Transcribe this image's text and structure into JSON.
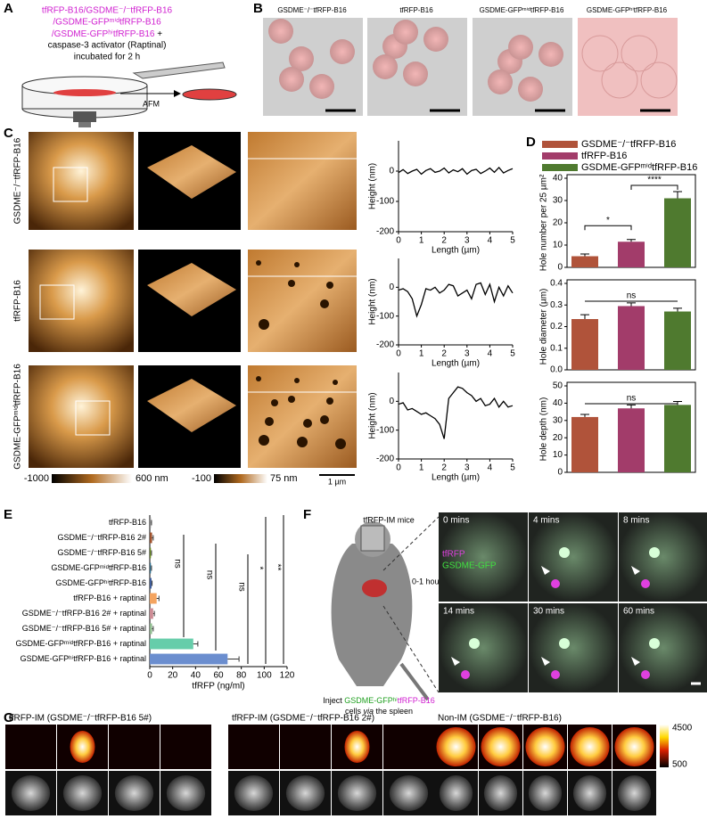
{
  "panel_labels": [
    "A",
    "B",
    "C",
    "D",
    "E",
    "F",
    "G"
  ],
  "panel_a": {
    "lines": [
      "tfRFP-B16/GSDME⁻/⁻tfRFP-B16",
      "/GSDME-GFPᵐⁱᵈtfRFP-B16",
      "/GSDME-GFPʰⁱtfRFP-B16"
    ],
    "plus": " +",
    "black_lines": [
      "caspase-3 activator (Raptinal)",
      "incubated for 2 h"
    ],
    "afm": "AFM"
  },
  "panel_b": {
    "titles": [
      "GSDME⁻/⁻tfRFP-B16",
      "tfRFP-B16",
      "GSDME-GFPᵐⁱᵈtfRFP-B16",
      "GSDME-GFPʰⁱtfRFP-B16"
    ]
  },
  "panel_c": {
    "row_labels": [
      "GSDME⁻/⁻tfRFP-B16",
      "tfRFP-B16",
      "GSDME-GFPᵐⁱᵈtfRFP-B16"
    ],
    "scale_1": [
      "-1000",
      "600 nm"
    ],
    "scale_2": [
      "-100",
      "75 nm"
    ],
    "scale_bar": "1 µm"
  },
  "panel_d": {
    "legend": [
      {
        "name": "GSDME⁻/⁻tfRFP-B16",
        "color": "#b0533a"
      },
      {
        "name": "tfRFP-B16",
        "color": "#a23c6a"
      },
      {
        "name": "GSDME-GFPᵐⁱᵈtfRFP-B16",
        "color": "#4f7a2f"
      }
    ]
  },
  "chart_data": [
    {
      "type": "line",
      "ylabel": "Height (nm)",
      "xlabel": "Length (µm)",
      "x": [
        0,
        0.2,
        0.4,
        0.6,
        0.8,
        1,
        1.2,
        1.4,
        1.6,
        1.8,
        2,
        2.2,
        2.4,
        2.6,
        2.8,
        3,
        3.2,
        3.4,
        3.6,
        3.8,
        4,
        4.2,
        4.4,
        4.6,
        4.8,
        5
      ],
      "series": [
        {
          "color": "#000000",
          "values": [
            -5,
            5,
            -8,
            0,
            6,
            -10,
            2,
            8,
            -4,
            0,
            10,
            -6,
            4,
            -2,
            8,
            -10,
            2,
            6,
            -8,
            0,
            10,
            -4,
            12,
            -6,
            2,
            8
          ]
        }
      ],
      "xlim": [
        0,
        5
      ],
      "ylim": [
        -200,
        100
      ],
      "xticks": [
        0,
        1,
        2,
        3,
        4,
        5
      ],
      "yticks": [
        -200,
        -100,
        0
      ]
    },
    {
      "type": "line",
      "ylabel": "Height (nm)",
      "xlabel": "Length (µm)",
      "x": [
        0,
        0.2,
        0.4,
        0.6,
        0.8,
        1,
        1.2,
        1.4,
        1.6,
        1.8,
        2,
        2.2,
        2.4,
        2.6,
        2.8,
        3,
        3.2,
        3.4,
        3.6,
        3.8,
        4,
        4.2,
        4.4,
        4.6,
        4.8,
        5
      ],
      "series": [
        {
          "color": "#000000",
          "values": [
            -10,
            -5,
            -15,
            -40,
            -100,
            -60,
            -5,
            -10,
            0,
            -20,
            -10,
            10,
            5,
            -30,
            -20,
            -10,
            -40,
            10,
            15,
            -25,
            10,
            -50,
            0,
            -30,
            5,
            -20
          ]
        }
      ],
      "xlim": [
        0,
        5
      ],
      "ylim": [
        -200,
        100
      ],
      "xticks": [
        0,
        1,
        2,
        3,
        4,
        5
      ],
      "yticks": [
        -200,
        -100,
        0
      ]
    },
    {
      "type": "line",
      "ylabel": "Height (nm)",
      "xlabel": "Length (µm)",
      "x": [
        0,
        0.2,
        0.4,
        0.6,
        0.8,
        1,
        1.2,
        1.4,
        1.6,
        1.8,
        2,
        2.2,
        2.4,
        2.6,
        2.8,
        3,
        3.2,
        3.4,
        3.6,
        3.8,
        4,
        4.2,
        4.4,
        4.6,
        4.8,
        5
      ],
      "series": [
        {
          "color": "#000000",
          "values": [
            -10,
            -5,
            -30,
            -25,
            -35,
            -45,
            -40,
            -50,
            -60,
            -80,
            -130,
            10,
            30,
            50,
            45,
            30,
            20,
            0,
            10,
            -15,
            -10,
            10,
            -20,
            0,
            -20,
            -15
          ]
        }
      ],
      "xlim": [
        0,
        5
      ],
      "ylim": [
        -200,
        100
      ],
      "xticks": [
        0,
        1,
        2,
        3,
        4,
        5
      ],
      "yticks": [
        -200,
        -100,
        0
      ]
    },
    {
      "type": "bar",
      "ylabel": "Hole number per 25 µm²",
      "values": [
        5,
        11.5,
        31
      ],
      "errors": [
        1,
        1,
        3
      ],
      "colors": [
        "#b0533a",
        "#a23c6a",
        "#4f7a2f"
      ],
      "ylim": [
        0,
        40
      ],
      "yticks": [
        0,
        10,
        20,
        30,
        40
      ],
      "significance": [
        "*",
        "****"
      ]
    },
    {
      "type": "bar",
      "ylabel": "Hole diameter (µm)",
      "values": [
        0.235,
        0.295,
        0.27
      ],
      "errors": [
        0.02,
        0.015,
        0.015
      ],
      "colors": [
        "#b0533a",
        "#a23c6a",
        "#4f7a2f"
      ],
      "ylim": [
        0,
        0.4
      ],
      "yticks": [
        {
          "value": 0,
          "label": "0.0"
        },
        0.1,
        0.2,
        0.3,
        0.4
      ],
      "significance": [
        "ns"
      ]
    },
    {
      "type": "bar",
      "ylabel": "Hole depth (nm)",
      "values": [
        32,
        37,
        39
      ],
      "errors": [
        1.5,
        2,
        2
      ],
      "colors": [
        "#b0533a",
        "#a23c6a",
        "#4f7a2f"
      ],
      "ylim": [
        0,
        50
      ],
      "yticks": [
        0,
        10,
        20,
        30,
        40,
        50
      ],
      "significance": [
        "ns"
      ]
    },
    {
      "type": "hbar",
      "xlabel": "tfRFP (ng/ml)",
      "categories": [
        "tfRFP-B16",
        "GSDME⁻/⁻tfRFP-B16 2#",
        "GSDME⁻/⁻tfRFP-B16 5#",
        "GSDME-GFPᵐⁱᵈtfRFP-B16",
        "GSDME-GFPʰⁱtfRFP-B16",
        "tfRFP-B16 + raptinal",
        "GSDME⁻/⁻tfRFP-B16 2# + raptinal",
        "GSDME⁻/⁻tfRFP-B16 5# + raptinal",
        "GSDME-GFPᵐⁱᵈtfRFP-B16 + raptinal",
        "GSDME-GFPʰⁱtfRFP-B16 + raptinal"
      ],
      "values": [
        1,
        2,
        1,
        1,
        1.5,
        6,
        3,
        2,
        38,
        68
      ],
      "errors": [
        0.5,
        1,
        0.5,
        0.5,
        0.5,
        2,
        1,
        1,
        4,
        10
      ],
      "colors": [
        "#8c8c8c",
        "#a0522d",
        "#6b8e23",
        "#2f6f8f",
        "#3b5a9a",
        "#f4a460",
        "#cd8c95",
        "#8fbc8f",
        "#66cdaa",
        "#6b8ecf"
      ],
      "xlim": [
        0,
        120
      ],
      "xticks": [
        0,
        20,
        40,
        60,
        80,
        100,
        120
      ],
      "significance": [
        "ns",
        "ns",
        "ns",
        "*",
        "**"
      ]
    }
  ],
  "panel_f": {
    "mice": "tfRFP-IM mice",
    "time": "0-1 hour",
    "inject": [
      "Inject ",
      "GSDME-GFPʰⁱ",
      "tfRFP-B16"
    ],
    "inject_2": [
      "cells ",
      "via",
      " the spleen"
    ],
    "frames": [
      "0 mins",
      "4 mins",
      "8 mins",
      "14 mins",
      "30 mins",
      "60 mins"
    ],
    "channels": [
      "tfRFP",
      "GSDME-GFP"
    ]
  },
  "panel_g": {
    "titles": [
      "tfRFP-IM (GSDME⁻/⁻tfRFP-B16 5#)",
      "tfRFP-IM (GSDME⁻/⁻tfRFP-B16 2#)",
      "Non-IM (GSDME⁻/⁻tfRFP-B16)"
    ],
    "scale": [
      "4500",
      "500"
    ]
  }
}
